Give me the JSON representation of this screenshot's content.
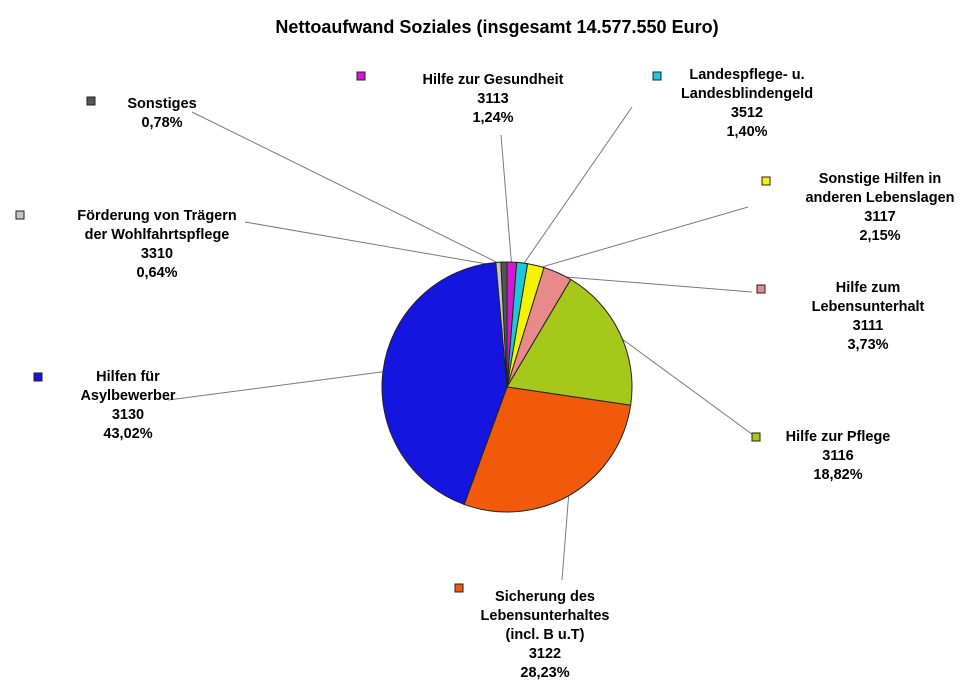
{
  "chart_data": {
    "type": "pie",
    "title": "Nettoaufwand Soziales (insgesamt 14.577.550 Euro)",
    "slices": [
      {
        "lines": [
          "Hilfe zur Gesundheit",
          "3113"
        ],
        "percent_label": "1,24%",
        "value": 1.24,
        "color": "#d11ad1"
      },
      {
        "lines": [
          "Landespflege- u.",
          "Landesblindengeld",
          "3512"
        ],
        "percent_label": "1,40%",
        "value": 1.4,
        "color": "#1fc8d8"
      },
      {
        "lines": [
          "Sonstige Hilfen in",
          "anderen Lebenslagen",
          "3117"
        ],
        "percent_label": "2,15%",
        "value": 2.15,
        "color": "#f4f400"
      },
      {
        "lines": [
          "Hilfe zum",
          "Lebensunterhalt",
          "3111"
        ],
        "percent_label": "3,73%",
        "value": 3.73,
        "color": "#e88a8a"
      },
      {
        "lines": [
          "Hilfe zur Pflege",
          "3116"
        ],
        "percent_label": "18,82%",
        "value": 18.82,
        "color": "#a6c81a"
      },
      {
        "lines": [
          "Sicherung des",
          "Lebensunterhaltes",
          "(incl. B u.T)",
          "3122"
        ],
        "percent_label": "28,23%",
        "value": 28.23,
        "color": "#f05a0a"
      },
      {
        "lines": [
          "Hilfen für",
          "Asylbewerber",
          "3130"
        ],
        "percent_label": "43,02%",
        "value": 43.02,
        "color": "#1515e0"
      },
      {
        "lines": [
          "Förderung von Trägern",
          "der Wohlfahrtspflege",
          "3310"
        ],
        "percent_label": "0,64%",
        "value": 0.64,
        "color": "#c4c4c4"
      },
      {
        "lines": [
          "Sonstiges"
        ],
        "percent_label": "0,78%",
        "value": 0.78,
        "color": "#555555"
      }
    ]
  }
}
